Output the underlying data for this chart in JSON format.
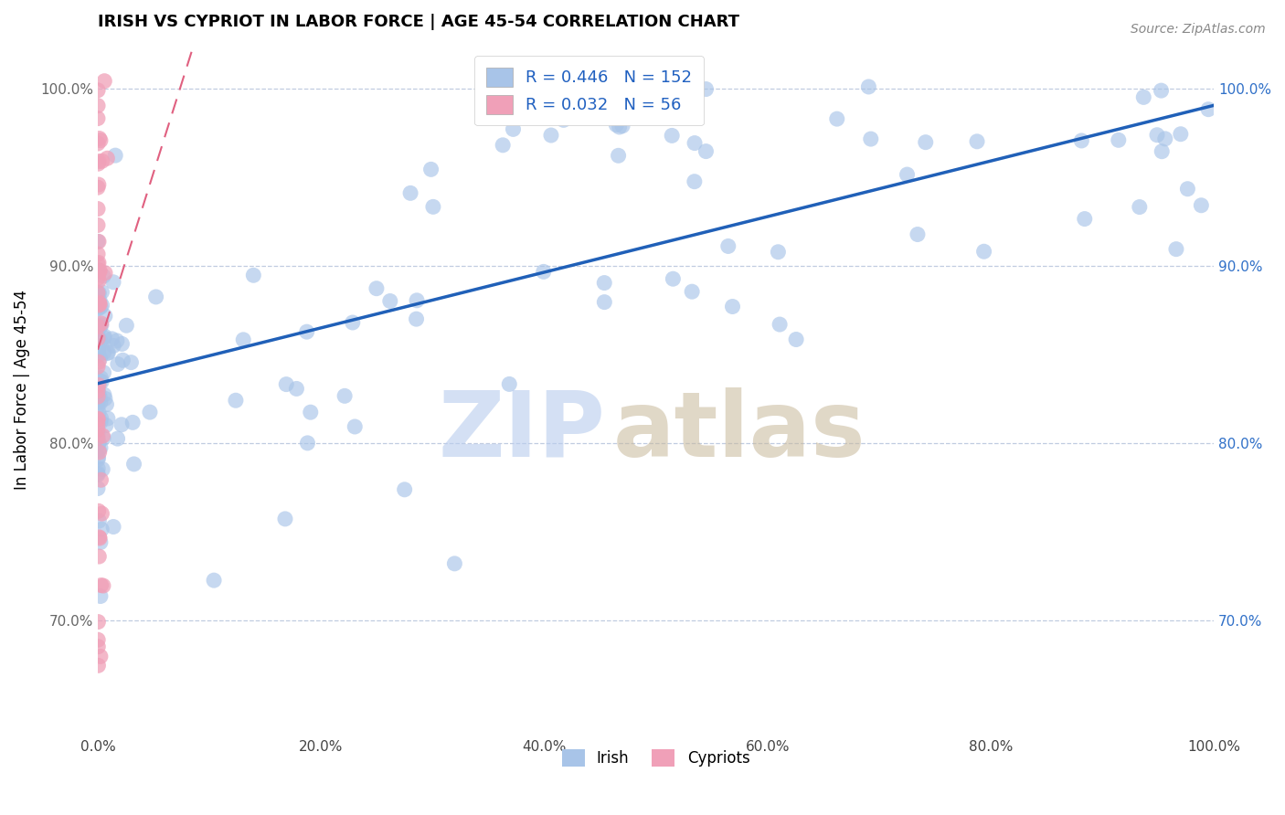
{
  "title": "IRISH VS CYPRIOT IN LABOR FORCE | AGE 45-54 CORRELATION CHART",
  "source_text": "Source: ZipAtlas.com",
  "ylabel": "In Labor Force | Age 45-54",
  "xlim": [
    0.0,
    1.0
  ],
  "ylim": [
    0.635,
    1.025
  ],
  "x_ticks": [
    0.0,
    0.2,
    0.4,
    0.6,
    0.8,
    1.0
  ],
  "x_tick_labels": [
    "0.0%",
    "20.0%",
    "40.0%",
    "60.0%",
    "80.0%",
    "100.0%"
  ],
  "y_ticks": [
    0.7,
    0.8,
    0.9,
    1.0
  ],
  "y_tick_labels": [
    "70.0%",
    "80.0%",
    "90.0%",
    "100.0%"
  ],
  "irish_R": 0.446,
  "irish_N": 152,
  "cypriot_R": 0.032,
  "cypriot_N": 56,
  "irish_color": "#a8c4e8",
  "cypriot_color": "#f0a0b8",
  "irish_line_color": "#2060b8",
  "cypriot_line_color": "#e06080",
  "right_axis_color": "#3070c8",
  "left_axis_color": "#666666",
  "legend_text_color": "#2060c0",
  "background_color": "#ffffff",
  "grid_color": "#c0cce0",
  "watermark_zip_color": "#b8ccee",
  "watermark_atlas_color": "#c8b89a",
  "title_fontsize": 13,
  "tick_fontsize": 11,
  "legend_fontsize": 13
}
